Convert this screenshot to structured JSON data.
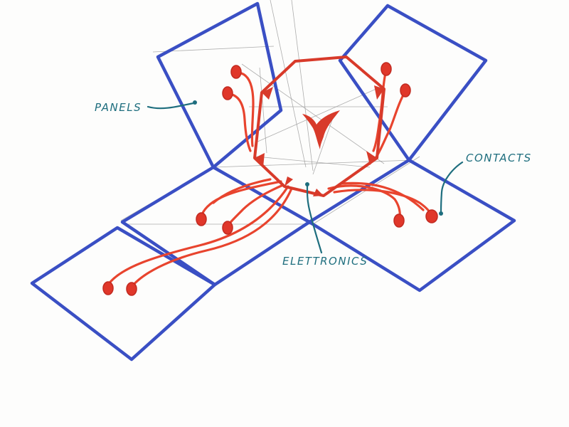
{
  "labels": {
    "panels": "PANELS",
    "contacts": "CONTACTS",
    "electronics": "ELETTRONICS"
  },
  "colors": {
    "panel_stroke": "#3a4fc4",
    "wire": "#e8442e",
    "contact_fill": "#e0372a",
    "label": "#1e6e7e",
    "pencil": "#9a9a9a"
  }
}
